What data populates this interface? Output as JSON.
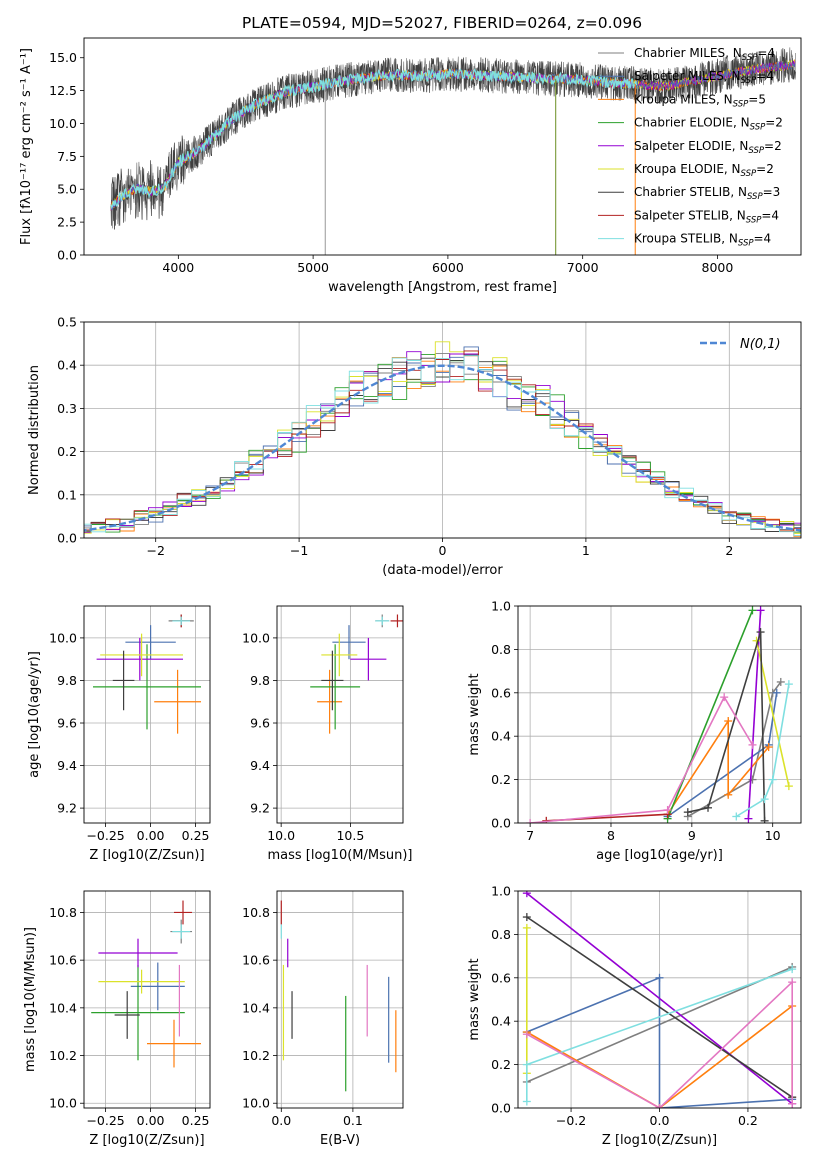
{
  "figure": {
    "title": "PLATE=0594, MJD=52027, FIBERID=0264, z=0.096"
  },
  "models": [
    {
      "name": "Chabrier MILES",
      "nssp": "4",
      "color": "#7f7f7f"
    },
    {
      "name": "Salpeter MILES",
      "nssp": "4",
      "color": "#4c72b0"
    },
    {
      "name": "Kroupa MILES",
      "nssp": "5",
      "color": "#ff7f0e"
    },
    {
      "name": "Chabrier ELODIE",
      "nssp": "2",
      "color": "#2ca02c"
    },
    {
      "name": "Salpeter ELODIE",
      "nssp": "2",
      "color": "#9400d3"
    },
    {
      "name": "Kroupa ELODIE",
      "nssp": "2",
      "color": "#dbe22a"
    },
    {
      "name": "Chabrier STELIB",
      "nssp": "3",
      "color": "#3f3f3f"
    },
    {
      "name": "Salpeter STELIB",
      "nssp": "4",
      "color": "#b22222"
    },
    {
      "name": "Kroupa STELIB",
      "nssp": "4",
      "color": "#7fdfe0"
    }
  ],
  "chart_data": [
    {
      "id": "spectrum",
      "type": "line",
      "xlabel": "wavelength [Angstrom, rest frame]",
      "ylabel": "Flux [fλ10⁻¹⁷ erg cm⁻² s⁻¹ A⁻¹]",
      "xlim": [
        3300,
        8620
      ],
      "ylim": [
        0,
        16.5
      ],
      "xticks": [
        4000,
        5000,
        6000,
        7000,
        8000
      ],
      "yticks": [
        0.0,
        2.5,
        5.0,
        7.5,
        10.0,
        12.5,
        15.0
      ],
      "continuum": {
        "x": [
          3500,
          3600,
          3700,
          3800,
          3900,
          4000,
          4100,
          4200,
          4300,
          4400,
          4500,
          4600,
          4800,
          5000,
          5200,
          5400,
          5600,
          5800,
          6000,
          6200,
          6400,
          6600,
          6800,
          7000,
          7200,
          7400,
          7600,
          7800,
          8000,
          8200,
          8400,
          8580
        ],
        "y": [
          3.7,
          4.6,
          5.1,
          4.8,
          5.2,
          7.1,
          7.6,
          8.4,
          9.4,
          10.3,
          11.0,
          11.6,
          12.4,
          12.8,
          13.2,
          13.5,
          13.7,
          13.6,
          13.8,
          13.7,
          13.6,
          13.5,
          13.4,
          13.3,
          13.1,
          13.0,
          12.8,
          13.2,
          13.6,
          14.0,
          14.3,
          14.5
        ]
      },
      "spikes": [
        {
          "x": 5090,
          "y": 0
        },
        {
          "x": 6800,
          "y": 0
        },
        {
          "x": 7390,
          "y": 0
        }
      ]
    },
    {
      "id": "residual-hist",
      "type": "line",
      "xlabel": "(data-model)/error",
      "ylabel": "Normed distribution",
      "xlim": [
        -2.5,
        2.5
      ],
      "ylim": [
        0,
        0.5
      ],
      "xticks": [
        -2,
        -1,
        0,
        1,
        2
      ],
      "yticks": [
        0.0,
        0.1,
        0.2,
        0.3,
        0.4,
        0.5
      ],
      "legend": "N(0,1)",
      "bin_width": 0.1,
      "gaussian": {
        "mean": 0,
        "sigma": 1
      }
    },
    {
      "id": "age-vs-Z",
      "type": "scatter",
      "xlabel": "Z [log10(Z/Zsun)]",
      "ylabel": "age [log10(age/yr)]",
      "xlim": [
        -0.37,
        0.33
      ],
      "ylim": [
        9.13,
        10.15
      ],
      "xticks": [
        -0.25,
        0.0,
        0.25
      ],
      "yticks": [
        9.2,
        9.4,
        9.6,
        9.8,
        10.0
      ],
      "points": [
        {
          "model": 0,
          "x": 0.17,
          "xerr": 0.07,
          "y": 10.08,
          "yerr": 0.03
        },
        {
          "model": 1,
          "x": 0.0,
          "xerr": 0.14,
          "y": 9.98,
          "yerr": 0.08
        },
        {
          "model": 2,
          "x": 0.15,
          "xerr": 0.13,
          "y": 9.7,
          "yerr": 0.15
        },
        {
          "model": 3,
          "x": -0.02,
          "xerr": 0.3,
          "y": 9.77,
          "yerr": 0.2
        },
        {
          "model": 4,
          "x": -0.06,
          "xerr": 0.24,
          "y": 9.9,
          "yerr": 0.1
        },
        {
          "model": 5,
          "x": -0.05,
          "xerr": 0.23,
          "y": 9.92,
          "yerr": 0.1
        },
        {
          "model": 6,
          "x": -0.15,
          "xerr": 0.06,
          "y": 9.8,
          "yerr": 0.14
        },
        {
          "model": 7,
          "x": 0.17,
          "xerr": 0.05,
          "y": 10.08,
          "yerr": 0.03
        },
        {
          "model": 8,
          "x": 0.17,
          "xerr": 0.05,
          "y": 10.08,
          "yerr": 0.02
        }
      ]
    },
    {
      "id": "age-vs-mass",
      "type": "scatter",
      "xlabel": "mass [log10(M/Msun)]",
      "ylabel": "",
      "xlim": [
        9.97,
        10.88
      ],
      "ylim": [
        9.13,
        10.15
      ],
      "xticks": [
        10.0,
        10.5
      ],
      "yticks": [
        9.2,
        9.4,
        9.6,
        9.8,
        10.0
      ],
      "points": [
        {
          "model": 0,
          "x": 10.73,
          "xerr": 0.05,
          "y": 10.08,
          "yerr": 0.03
        },
        {
          "model": 1,
          "x": 10.49,
          "xerr": 0.12,
          "y": 9.98,
          "yerr": 0.08
        },
        {
          "model": 2,
          "x": 10.35,
          "xerr": 0.09,
          "y": 9.7,
          "yerr": 0.15
        },
        {
          "model": 3,
          "x": 10.39,
          "xerr": 0.18,
          "y": 9.77,
          "yerr": 0.2
        },
        {
          "model": 4,
          "x": 10.63,
          "xerr": 0.13,
          "y": 9.9,
          "yerr": 0.1
        },
        {
          "model": 5,
          "x": 10.42,
          "xerr": 0.13,
          "y": 9.92,
          "yerr": 0.1
        },
        {
          "model": 6,
          "x": 10.37,
          "xerr": 0.08,
          "y": 9.8,
          "yerr": 0.14
        },
        {
          "model": 7,
          "x": 10.84,
          "xerr": 0.05,
          "y": 10.08,
          "yerr": 0.03
        },
        {
          "model": 8,
          "x": 10.73,
          "xerr": 0.05,
          "y": 10.08,
          "yerr": 0.02
        }
      ]
    },
    {
      "id": "weight-vs-age",
      "type": "line",
      "xlabel": "age [log10(age/yr)]",
      "ylabel": "mass weight",
      "xlim": [
        6.85,
        10.35
      ],
      "ylim": [
        0,
        1
      ],
      "xticks": [
        7,
        8,
        9,
        10
      ],
      "yticks": [
        0.0,
        0.2,
        0.4,
        0.6,
        0.8,
        1.0
      ],
      "series": [
        {
          "model": 0,
          "x": [
            8.95,
            9.75,
            10.0,
            10.1
          ],
          "y": [
            0.03,
            0.2,
            0.6,
            0.65
          ]
        },
        {
          "model": 1,
          "x": [
            8.7,
            9.95,
            10.05
          ],
          "y": [
            0.03,
            0.36,
            0.6
          ]
        },
        {
          "model": 2,
          "x": [
            8.7,
            9.45,
            9.45,
            9.95
          ],
          "y": [
            0.04,
            0.47,
            0.13,
            0.35
          ]
        },
        {
          "model": 3,
          "x": [
            8.7,
            9.75
          ],
          "y": [
            0.02,
            0.98
          ]
        },
        {
          "model": 4,
          "x": [
            9.7,
            9.85
          ],
          "y": [
            0.02,
            0.98
          ]
        },
        {
          "model": 5,
          "x": [
            9.8,
            10.2
          ],
          "y": [
            0.84,
            0.17
          ]
        },
        {
          "model": 6,
          "x": [
            8.95,
            9.2,
            9.85,
            9.9
          ],
          "y": [
            0.05,
            0.07,
            0.88,
            0.01
          ]
        },
        {
          "model": 7,
          "x": [
            7.2,
            8.7
          ],
          "y": [
            0.01,
            0.04
          ]
        },
        {
          "model": 8,
          "x": [
            9.55,
            9.9,
            10.0,
            10.2
          ],
          "y": [
            0.03,
            0.11,
            0.2,
            0.64
          ]
        },
        {
          "model": 9,
          "x": [
            7.0,
            8.7,
            9.4,
            9.75
          ],
          "y": [
            0.0,
            0.06,
            0.58,
            0.36
          ]
        }
      ]
    },
    {
      "id": "mass-vs-Z",
      "type": "scatter",
      "xlabel": "Z [log10(Z/Zsun)]",
      "ylabel": "mass [log10(M/Msun)]",
      "xlim": [
        -0.37,
        0.33
      ],
      "ylim": [
        9.98,
        10.89
      ],
      "xticks": [
        -0.25,
        0.0,
        0.25
      ],
      "yticks": [
        10.0,
        10.2,
        10.4,
        10.6,
        10.8
      ],
      "points": [
        {
          "model": 0,
          "x": 0.17,
          "xerr": 0.06,
          "y": 10.72,
          "yerr": 0.05
        },
        {
          "model": 1,
          "x": 0.04,
          "xerr": 0.15,
          "y": 10.49,
          "yerr": 0.1
        },
        {
          "model": 2,
          "x": 0.13,
          "xerr": 0.15,
          "y": 10.25,
          "yerr": 0.1
        },
        {
          "model": 3,
          "x": -0.07,
          "xerr": 0.26,
          "y": 10.38,
          "yerr": 0.2
        },
        {
          "model": 4,
          "x": -0.07,
          "xerr": 0.22,
          "y": 10.63,
          "yerr": 0.06
        },
        {
          "model": 5,
          "x": -0.05,
          "xerr": 0.24,
          "y": 10.51,
          "yerr": 0.05
        },
        {
          "model": 6,
          "x": -0.13,
          "xerr": 0.07,
          "y": 10.37,
          "yerr": 0.1
        },
        {
          "model": 7,
          "x": 0.18,
          "xerr": 0.05,
          "y": 10.8,
          "yerr": 0.05
        },
        {
          "model": 8,
          "x": 0.17,
          "xerr": 0.05,
          "y": 10.72,
          "yerr": 0.03
        },
        {
          "model": 9,
          "x": 0.16,
          "xerr": 0.0,
          "y": 10.43,
          "yerr": 0.15
        }
      ]
    },
    {
      "id": "mass-vs-EBV",
      "type": "scatter",
      "xlabel": "E(B-V)",
      "ylabel": "",
      "xlim": [
        -0.006,
        0.17
      ],
      "ylim": [
        9.98,
        10.89
      ],
      "xticks": [
        0.0,
        0.1
      ],
      "yticks": [
        10.0,
        10.2,
        10.4,
        10.6,
        10.8
      ],
      "points": [
        {
          "model": 7,
          "x": 0.0,
          "y": 10.8,
          "yerr": 0.05
        },
        {
          "model": 8,
          "x": 0.0,
          "y": 10.72,
          "yerr": 0.03
        },
        {
          "model": 5,
          "x": 0.003,
          "y": 10.38,
          "yerr": 0.2
        },
        {
          "model": 4,
          "x": 0.009,
          "y": 10.63,
          "yerr": 0.06
        },
        {
          "model": 6,
          "x": 0.015,
          "y": 10.37,
          "yerr": 0.1
        },
        {
          "model": 3,
          "x": 0.09,
          "y": 10.25,
          "yerr": 0.2
        },
        {
          "model": 9,
          "x": 0.12,
          "y": 10.43,
          "yerr": 0.15
        },
        {
          "model": 1,
          "x": 0.15,
          "y": 10.35,
          "yerr": 0.18
        },
        {
          "model": 2,
          "x": 0.16,
          "y": 10.26,
          "yerr": 0.13
        }
      ]
    },
    {
      "id": "weight-vs-Z",
      "type": "line",
      "xlabel": "Z [log10(Z/Zsun)]",
      "ylabel": "mass weight",
      "xlim": [
        -0.32,
        0.32
      ],
      "ylim": [
        0,
        1
      ],
      "xticks": [
        -0.2,
        0.0,
        0.2
      ],
      "yticks": [
        0.0,
        0.2,
        0.4,
        0.6,
        0.8,
        1.0
      ],
      "series": [
        {
          "model": 0,
          "x": [
            -0.3,
            0.3
          ],
          "y": [
            0.12,
            0.65
          ]
        },
        {
          "model": 1,
          "x": [
            -0.3,
            0.0,
            0.0,
            0.3
          ],
          "y": [
            0.35,
            0.6,
            0.0,
            0.04
          ]
        },
        {
          "model": 2,
          "x": [
            -0.3,
            0.0,
            0.3,
            0.3
          ],
          "y": [
            0.35,
            0.0,
            0.47,
            0.05
          ]
        },
        {
          "model": 4,
          "x": [
            -0.3,
            0.3
          ],
          "y": [
            0.99,
            0.02
          ]
        },
        {
          "model": 5,
          "x": [
            -0.3,
            -0.3
          ],
          "y": [
            0.83,
            0.16
          ]
        },
        {
          "model": 6,
          "x": [
            -0.3,
            0.3
          ],
          "y": [
            0.88,
            0.05
          ]
        },
        {
          "model": 8,
          "x": [
            -0.3,
            -0.3,
            0.3
          ],
          "y": [
            0.03,
            0.2,
            0.64
          ]
        },
        {
          "model": 9,
          "x": [
            -0.3,
            0.0,
            0.3,
            0.3
          ],
          "y": [
            0.34,
            0.0,
            0.58,
            0.02
          ]
        }
      ]
    }
  ]
}
